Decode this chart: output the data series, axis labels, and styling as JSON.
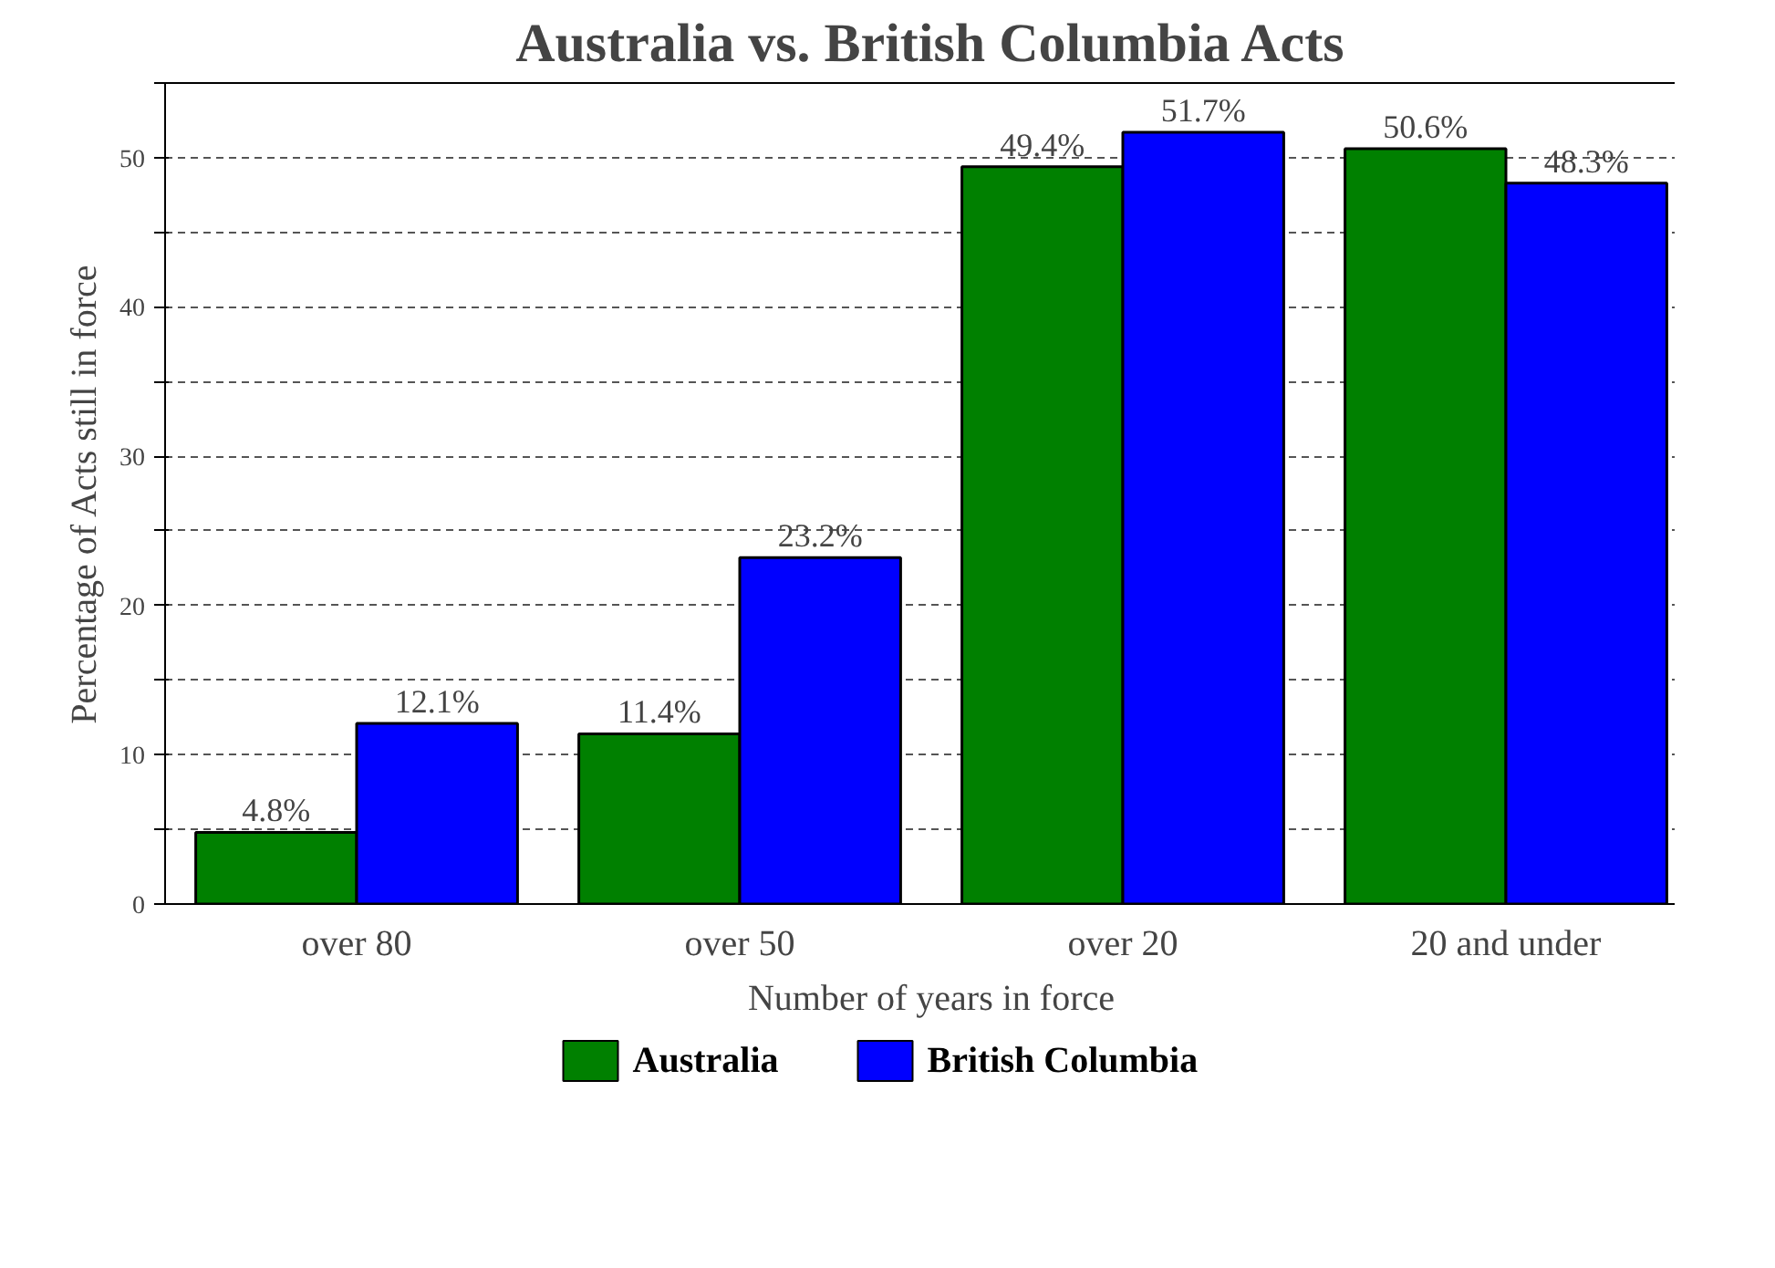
{
  "chart_data": {
    "type": "bar",
    "title": "Australia vs. British Columbia Acts",
    "xlabel": "Number of years in force",
    "ylabel": "Percentage of Acts still in force",
    "categories": [
      "over 80",
      "over 50",
      "over 20",
      "20 and under"
    ],
    "series": [
      {
        "name": "Australia",
        "color": "#008000",
        "values": [
          4.8,
          11.4,
          49.4,
          50.6
        ],
        "value_labels": [
          "4.8%",
          "11.4%",
          "49.4%",
          "50.6%"
        ]
      },
      {
        "name": "British Columbia",
        "color": "#0000ff",
        "values": [
          12.1,
          23.2,
          51.7,
          48.3
        ],
        "value_labels": [
          "12.1%",
          "23.2%",
          "51.7%",
          "48.3%"
        ]
      }
    ],
    "ylim": [
      0,
      55
    ],
    "yticks": [
      0,
      {
        "value": 5,
        "label": null
      },
      10,
      {
        "value": 15,
        "label": null
      },
      20,
      {
        "value": 25,
        "label": null
      },
      30,
      {
        "value": 35,
        "label": null
      },
      40,
      {
        "value": 45,
        "label": null
      },
      50,
      {
        "value": 55,
        "label": null
      }
    ],
    "grid": "y",
    "legend": "bottom"
  }
}
